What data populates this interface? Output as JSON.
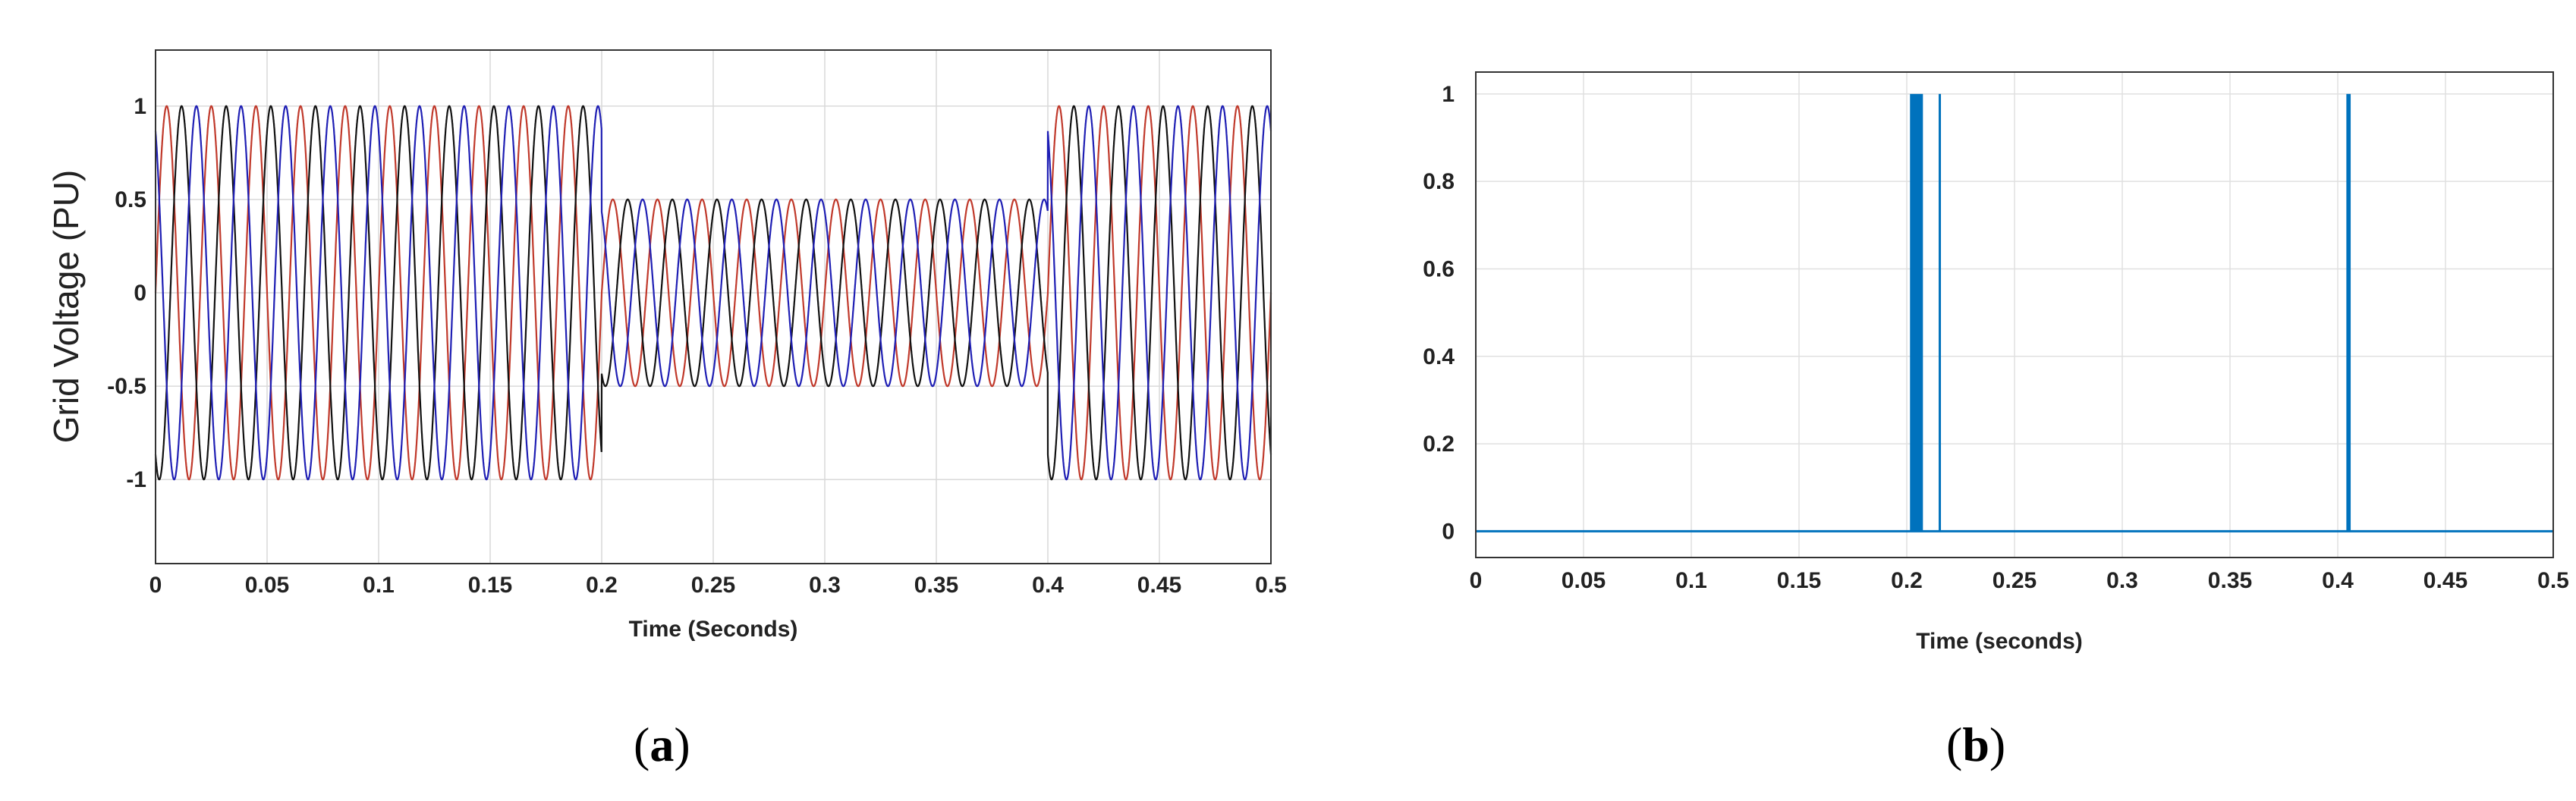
{
  "chart_data": [
    {
      "id": "a",
      "type": "line",
      "title": "",
      "xlabel": "Time (Seconds)",
      "ylabel": "Grid Voltage (PU)",
      "xlim": [
        0,
        0.5
      ],
      "ylim": [
        -1.45,
        1.3
      ],
      "grid": true,
      "x_ticks": [
        0,
        0.05,
        0.1,
        0.15,
        0.2,
        0.25,
        0.3,
        0.35,
        0.4,
        0.45,
        0.5
      ],
      "x_tick_labels": [
        "0",
        "0.05",
        "0.1",
        "0.15",
        "0.2",
        "0.25",
        "0.3",
        "0.35",
        "0.4",
        "0.45",
        "0.5"
      ],
      "y_ticks": [
        1,
        0.5,
        0,
        -0.5,
        -1
      ],
      "y_tick_labels": [
        "1",
        "0.5",
        "0",
        "-0.5",
        "-1"
      ],
      "frequency_hz": 50,
      "segments": [
        {
          "t_start": 0,
          "t_end": 0.2,
          "amplitude": 1.0
        },
        {
          "t_start": 0.2,
          "t_end": 0.4,
          "amplitude": 0.5
        },
        {
          "t_start": 0.4,
          "t_end": 0.5,
          "amplitude": 1.0
        }
      ],
      "series": [
        {
          "phase_deg": 0,
          "color": "#c0392b"
        },
        {
          "phase_deg": -120,
          "color": "#111111"
        },
        {
          "phase_deg": 120,
          "color": "#1f1fb4"
        }
      ]
    },
    {
      "id": "b",
      "type": "line",
      "title": "",
      "xlabel": "Time (seconds)",
      "ylabel": "",
      "xlim": [
        0,
        0.5
      ],
      "ylim": [
        -0.06,
        1.05
      ],
      "grid": true,
      "x_ticks": [
        0,
        0.05,
        0.1,
        0.15,
        0.2,
        0.25,
        0.3,
        0.35,
        0.4,
        0.45,
        0.5
      ],
      "x_tick_labels": [
        "0",
        "0.05",
        "0.1",
        "0.15",
        "0.2",
        "0.25",
        "0.3",
        "0.35",
        "0.4",
        "0.45",
        "0.5"
      ],
      "y_ticks": [
        0,
        0.2,
        0.4,
        0.6,
        0.8,
        1
      ],
      "y_tick_labels": [
        "0",
        "0.2",
        "0.4",
        "0.6",
        "0.8",
        "1"
      ],
      "color": "#0072bd",
      "baseline": 0,
      "pulses": [
        {
          "t_start": 0.2015,
          "t_end": 0.2075,
          "value": 1
        },
        {
          "t_start": 0.2148,
          "t_end": 0.2154,
          "value": 1
        },
        {
          "t_start": 0.404,
          "t_end": 0.406,
          "value": 1
        }
      ]
    }
  ],
  "captions": [
    "a",
    "b"
  ]
}
